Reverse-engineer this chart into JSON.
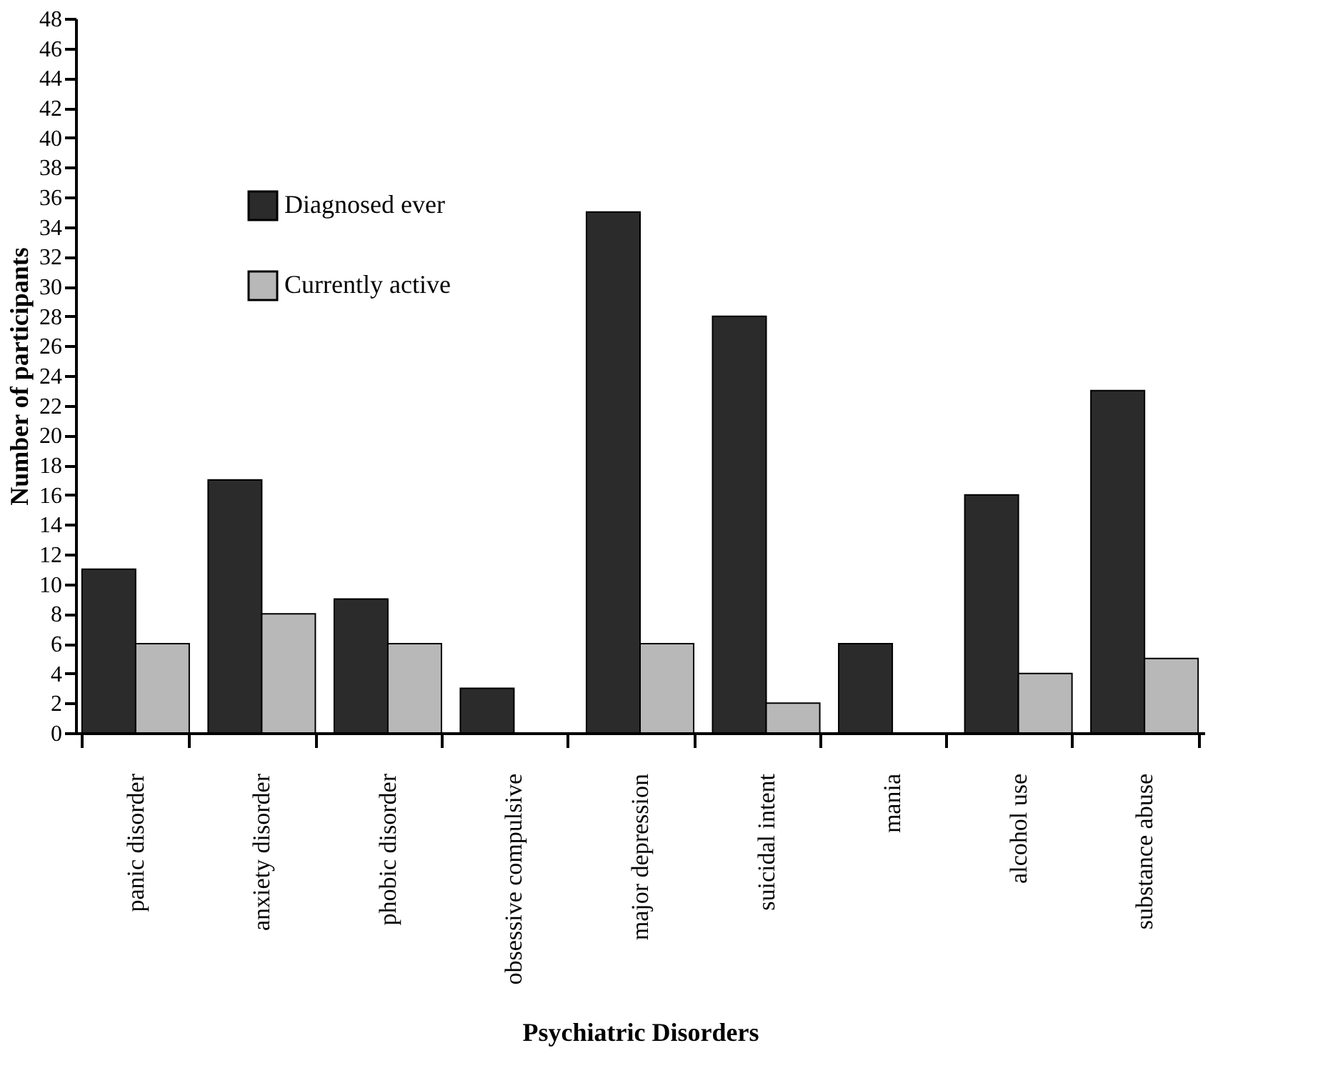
{
  "chart_data": {
    "type": "bar",
    "xlabel": "Psychiatric Disorders",
    "ylabel": "Number of participants",
    "categories": [
      "panic disorder",
      "anxiety disorder",
      "phobic disorder",
      "obsessive compulsive",
      "major depression",
      "suicidal intent",
      "mania",
      "alcohol use",
      "substance abuse"
    ],
    "series": [
      {
        "name": "Diagnosed ever",
        "color": "#2b2b2b",
        "values": [
          11,
          17,
          9,
          3,
          35,
          28,
          6,
          16,
          23
        ]
      },
      {
        "name": "Currently active",
        "color": "#b8b8b8",
        "values": [
          6,
          8,
          6,
          null,
          6,
          2,
          null,
          4,
          5
        ]
      }
    ],
    "ylim": [
      0,
      48
    ],
    "yticks": [
      0,
      2,
      4,
      6,
      8,
      10,
      12,
      14,
      16,
      18,
      20,
      22,
      24,
      26,
      28,
      30,
      32,
      34,
      36,
      38,
      40,
      42,
      44,
      46,
      48
    ],
    "grid": false,
    "legend": "top left"
  }
}
